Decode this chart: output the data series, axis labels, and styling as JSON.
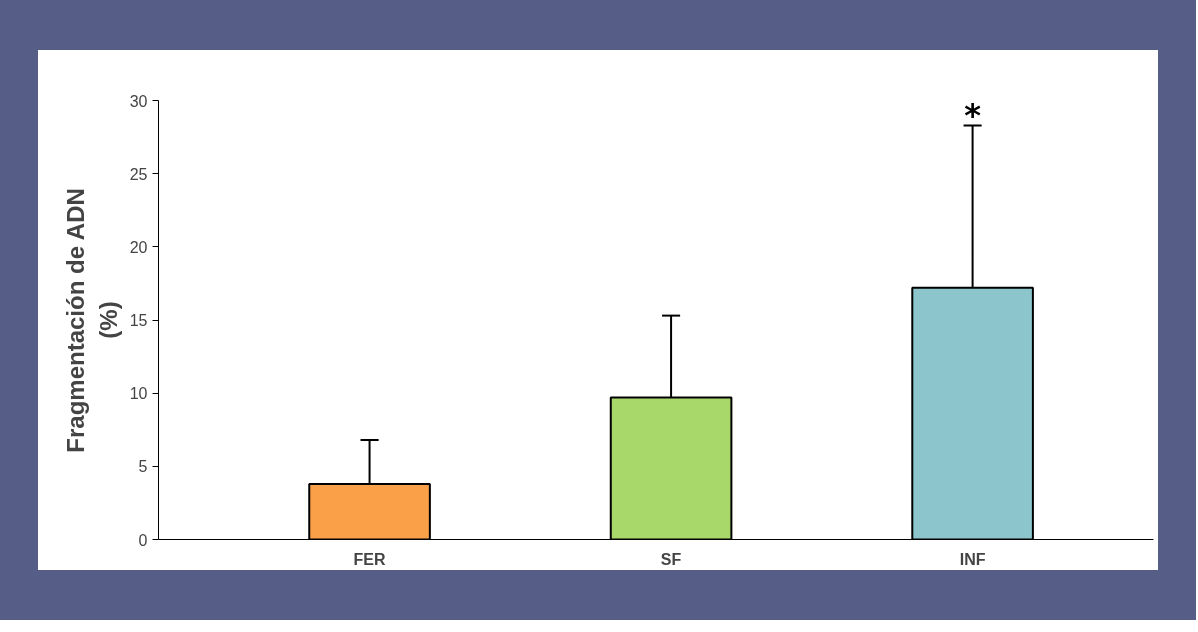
{
  "chart_data": {
    "type": "bar",
    "ylabel": "Fragmentación de ADN\n(%)",
    "categories": [
      "FER",
      "SF",
      "INF"
    ],
    "values": [
      3.8,
      9.7,
      17.2
    ],
    "errors": [
      [
        3.8,
        6.8
      ],
      [
        9.7,
        15.3
      ],
      [
        17.2,
        28.3
      ]
    ],
    "colors": [
      "#f9a049",
      "#a8d86a",
      "#8cc6cc"
    ],
    "ylim": [
      0,
      30
    ],
    "yticks": [
      0,
      5,
      10,
      15,
      20,
      25,
      30
    ],
    "grid": false,
    "annotations": [
      "*"
    ]
  }
}
